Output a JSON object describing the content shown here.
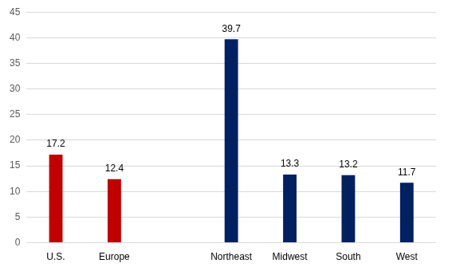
{
  "chart_data": {
    "type": "bar",
    "categories": [
      "U.S.",
      "Europe",
      null,
      "Northeast",
      "Midwest",
      "South",
      "West"
    ],
    "values": [
      17.2,
      12.4,
      null,
      39.7,
      13.3,
      13.2,
      11.7
    ],
    "colors": [
      "#c00000",
      "#c00000",
      null,
      "#002060",
      "#002060",
      "#002060",
      "#002060"
    ],
    "ylim": [
      0,
      45
    ],
    "yticks": [
      0,
      5,
      10,
      15,
      20,
      25,
      30,
      35,
      40,
      45
    ],
    "grid": true,
    "data_labels": true
  }
}
